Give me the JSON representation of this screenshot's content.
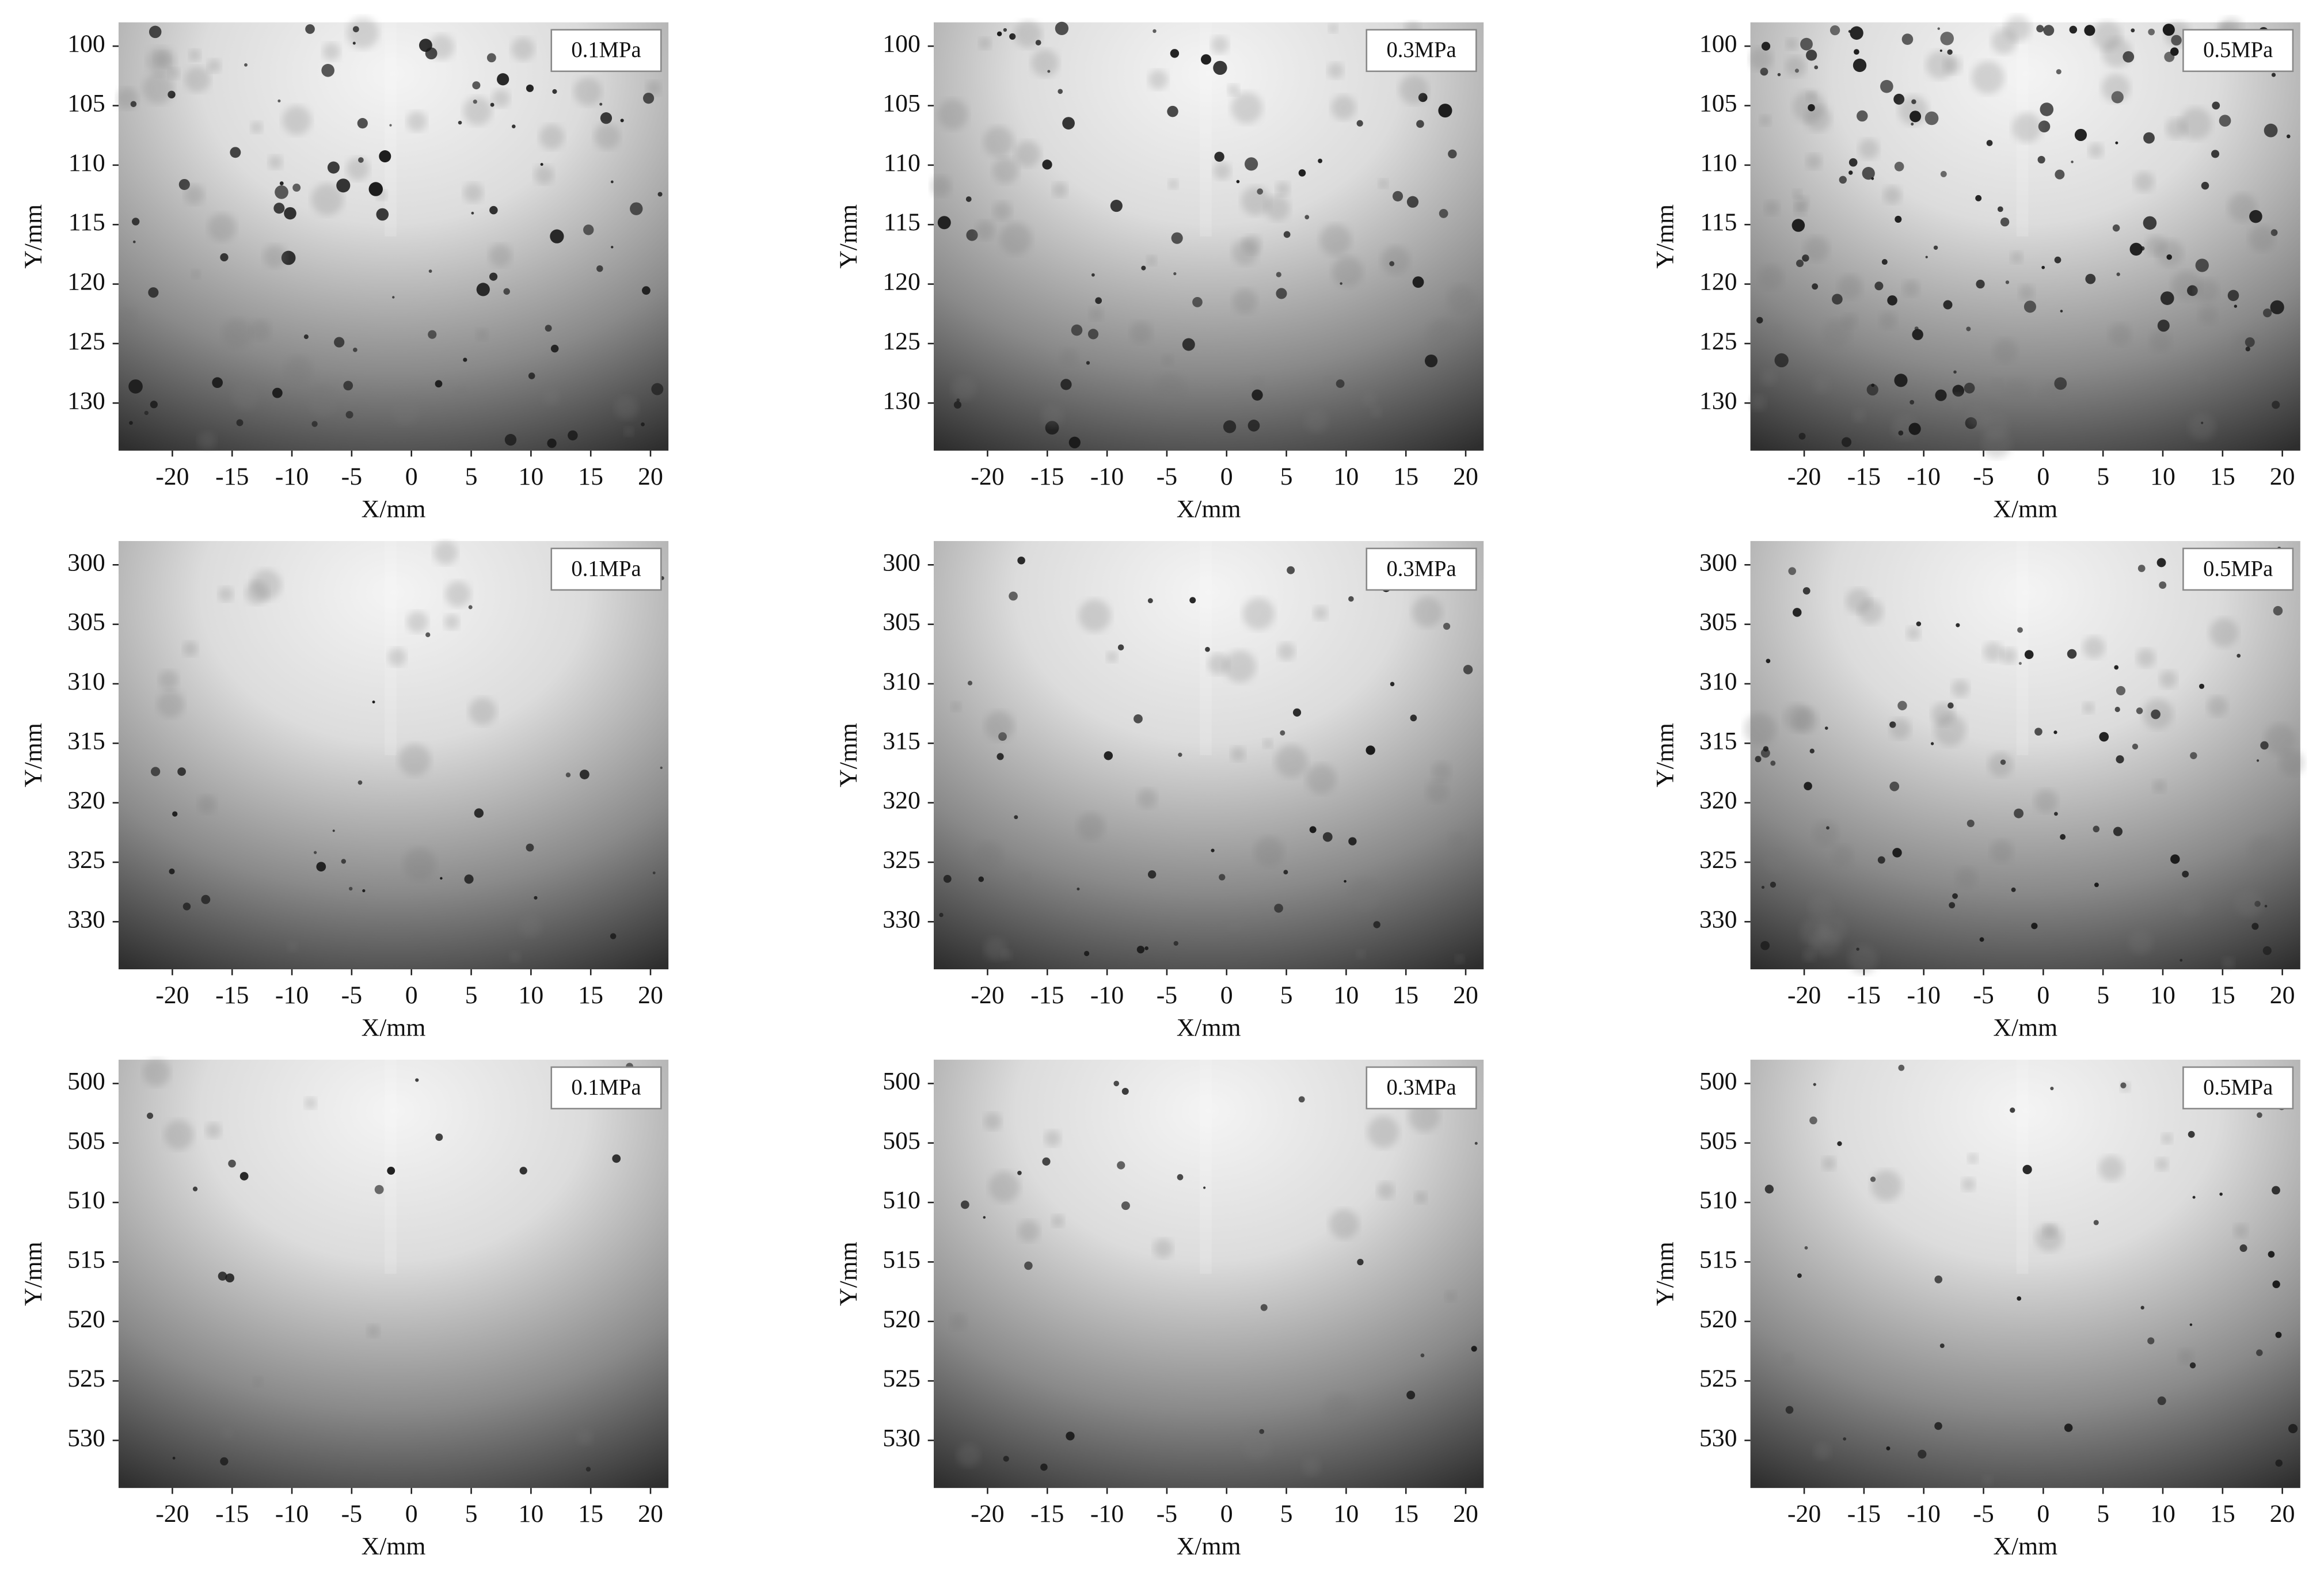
{
  "chart_data": [
    {
      "type": "image",
      "label": "0.1MPa",
      "xlabel": "X/mm",
      "ylabel": "Y/mm",
      "xlim": [
        -24.5,
        21.5
      ],
      "ylim": [
        98,
        134
      ],
      "y_reversed": true,
      "xticks": [
        -20,
        -15,
        -10,
        -5,
        0,
        5,
        10,
        15,
        20
      ],
      "yticks": [
        100,
        105,
        110,
        115,
        120,
        125,
        130
      ]
    },
    {
      "type": "image",
      "label": "0.3MPa",
      "xlabel": "X/mm",
      "ylabel": "Y/mm",
      "xlim": [
        -24.5,
        21.5
      ],
      "ylim": [
        98,
        134
      ],
      "y_reversed": true,
      "xticks": [
        -20,
        -15,
        -10,
        -5,
        0,
        5,
        10,
        15,
        20
      ],
      "yticks": [
        100,
        105,
        110,
        115,
        120,
        125,
        130
      ]
    },
    {
      "type": "image",
      "label": "0.5MPa",
      "xlabel": "X/mm",
      "ylabel": "Y/mm",
      "xlim": [
        -24.5,
        21.5
      ],
      "ylim": [
        98,
        134
      ],
      "y_reversed": true,
      "xticks": [
        -20,
        -15,
        -10,
        -5,
        0,
        5,
        10,
        15,
        20
      ],
      "yticks": [
        100,
        105,
        110,
        115,
        120,
        125,
        130
      ]
    },
    {
      "type": "image",
      "label": "0.1MPa",
      "xlabel": "X/mm",
      "ylabel": "Y/mm",
      "xlim": [
        -24.5,
        21.5
      ],
      "ylim": [
        298,
        334
      ],
      "y_reversed": true,
      "xticks": [
        -20,
        -15,
        -10,
        -5,
        0,
        5,
        10,
        15,
        20
      ],
      "yticks": [
        300,
        305,
        310,
        315,
        320,
        325,
        330
      ]
    },
    {
      "type": "image",
      "label": "0.3MPa",
      "xlabel": "X/mm",
      "ylabel": "Y/mm",
      "xlim": [
        -24.5,
        21.5
      ],
      "ylim": [
        298,
        334
      ],
      "y_reversed": true,
      "xticks": [
        -20,
        -15,
        -10,
        -5,
        0,
        5,
        10,
        15,
        20
      ],
      "yticks": [
        300,
        305,
        310,
        315,
        320,
        325,
        330
      ]
    },
    {
      "type": "image",
      "label": "0.5MPa",
      "xlabel": "X/mm",
      "ylabel": "Y/mm",
      "xlim": [
        -24.5,
        21.5
      ],
      "ylim": [
        298,
        334
      ],
      "y_reversed": true,
      "xticks": [
        -20,
        -15,
        -10,
        -5,
        0,
        5,
        10,
        15,
        20
      ],
      "yticks": [
        300,
        305,
        310,
        315,
        320,
        325,
        330
      ]
    },
    {
      "type": "image",
      "label": "0.1MPa",
      "xlabel": "X/mm",
      "ylabel": "Y/mm",
      "xlim": [
        -24.5,
        21.5
      ],
      "ylim": [
        498,
        534
      ],
      "y_reversed": true,
      "xticks": [
        -20,
        -15,
        -10,
        -5,
        0,
        5,
        10,
        15,
        20
      ],
      "yticks": [
        500,
        505,
        510,
        515,
        520,
        525,
        530
      ]
    },
    {
      "type": "image",
      "label": "0.3MPa",
      "xlabel": "X/mm",
      "ylabel": "Y/mm",
      "xlim": [
        -24.5,
        21.5
      ],
      "ylim": [
        498,
        534
      ],
      "y_reversed": true,
      "xticks": [
        -20,
        -15,
        -10,
        -5,
        0,
        5,
        10,
        15,
        20
      ],
      "yticks": [
        500,
        505,
        510,
        515,
        520,
        525,
        530
      ]
    },
    {
      "type": "image",
      "label": "0.5MPa",
      "xlabel": "X/mm",
      "ylabel": "Y/mm",
      "xlim": [
        -24.5,
        21.5
      ],
      "ylim": [
        498,
        534
      ],
      "y_reversed": true,
      "xticks": [
        -20,
        -15,
        -10,
        -5,
        0,
        5,
        10,
        15,
        20
      ],
      "yticks": [
        500,
        505,
        510,
        515,
        520,
        525,
        530
      ]
    }
  ]
}
